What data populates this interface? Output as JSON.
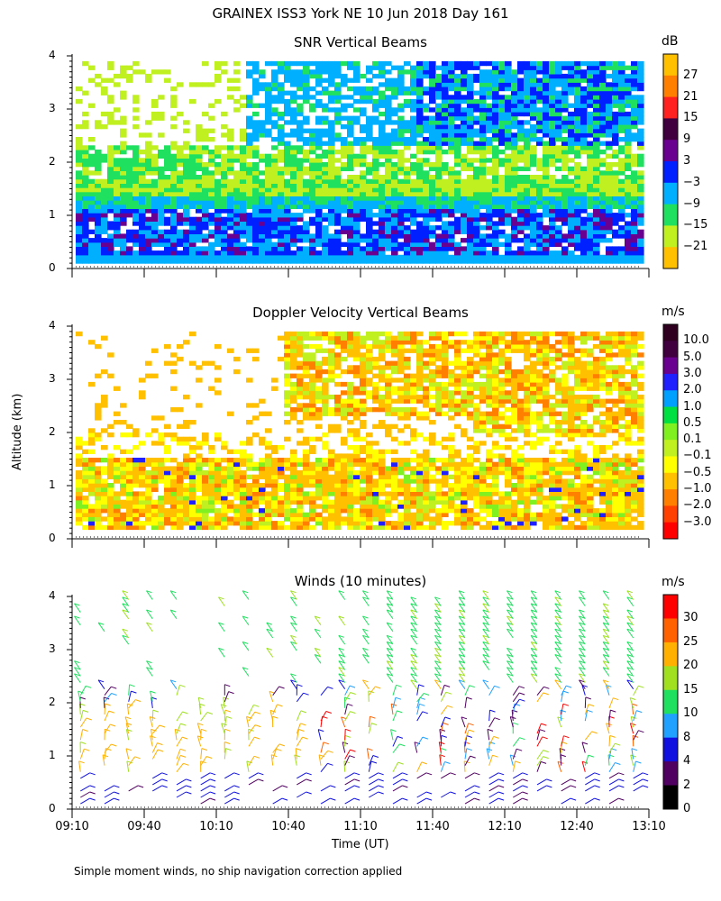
{
  "title": "GRAINEX ISS3 York NE  10 Jun 2018 Day 161",
  "footnote": "Simple moment winds, no ship navigation correction applied",
  "chart_data": [
    {
      "type": "heatmap",
      "title": "SNR Vertical Beams",
      "ylabel": "Altitude (km)",
      "xlabel": "Time (UT)",
      "x_ticks": [
        "09:10",
        "09:40",
        "10:10",
        "10:40",
        "11:10",
        "11:40",
        "12:10",
        "12:40",
        "13:10"
      ],
      "y_ticks": [
        "0",
        "1",
        "2",
        "3",
        "4"
      ],
      "ylim": [
        0,
        4
      ],
      "xlim": [
        "09:10",
        "13:10"
      ],
      "colorbar": {
        "unit": "dB",
        "levels": [
          "27",
          "21",
          "15",
          "9",
          "3",
          "−3",
          "−9",
          "−15",
          "−21"
        ],
        "colors": [
          "#ffc000",
          "#ff8000",
          "#ff2020",
          "#400040",
          "#6a0090",
          "#0020ff",
          "#00b0ff",
          "#20e060",
          "#c0f020",
          "#ffc000"
        ]
      }
    },
    {
      "type": "heatmap",
      "title": "Doppler Velocity Vertical Beams",
      "ylabel": "Altitude (km)",
      "x_ticks": [
        "09:10",
        "09:40",
        "10:10",
        "10:40",
        "11:10",
        "11:40",
        "12:10",
        "12:40",
        "13:10"
      ],
      "y_ticks": [
        "0",
        "1",
        "2",
        "3",
        "4"
      ],
      "ylim": [
        0,
        4
      ],
      "colorbar": {
        "unit": "m/s",
        "levels": [
          "10.0",
          "5.0",
          "3.0",
          "2.0",
          "1.0",
          "0.5",
          "0.1",
          "−0.1",
          "−0.5",
          "−1.0",
          "−2.0",
          "−3.0"
        ],
        "colors": [
          "#300020",
          "#400040",
          "#6a0090",
          "#2020ff",
          "#00a0ff",
          "#00e040",
          "#80f020",
          "#c0f020",
          "#ffff00",
          "#ffc000",
          "#ff8000",
          "#ff4000",
          "#ff0000"
        ]
      }
    },
    {
      "type": "scatter",
      "title": "Winds (10 minutes)",
      "ylabel": "Altitude (km)",
      "xlabel": "Time (UT)",
      "x_ticks": [
        "09:10",
        "09:40",
        "10:10",
        "10:40",
        "11:10",
        "11:40",
        "12:10",
        "12:40",
        "13:10"
      ],
      "y_ticks": [
        "0",
        "1",
        "2",
        "3",
        "4"
      ],
      "ylim": [
        0,
        4
      ],
      "colorbar": {
        "unit": "m/s",
        "levels": [
          "30",
          "25",
          "20",
          "15",
          "10",
          "8",
          "4",
          "2",
          "0"
        ],
        "colors": [
          "#ff0000",
          "#ff6000",
          "#ffb000",
          "#a0e020",
          "#20e060",
          "#20a0ff",
          "#1010e0",
          "#500060",
          "#000000"
        ]
      }
    }
  ]
}
